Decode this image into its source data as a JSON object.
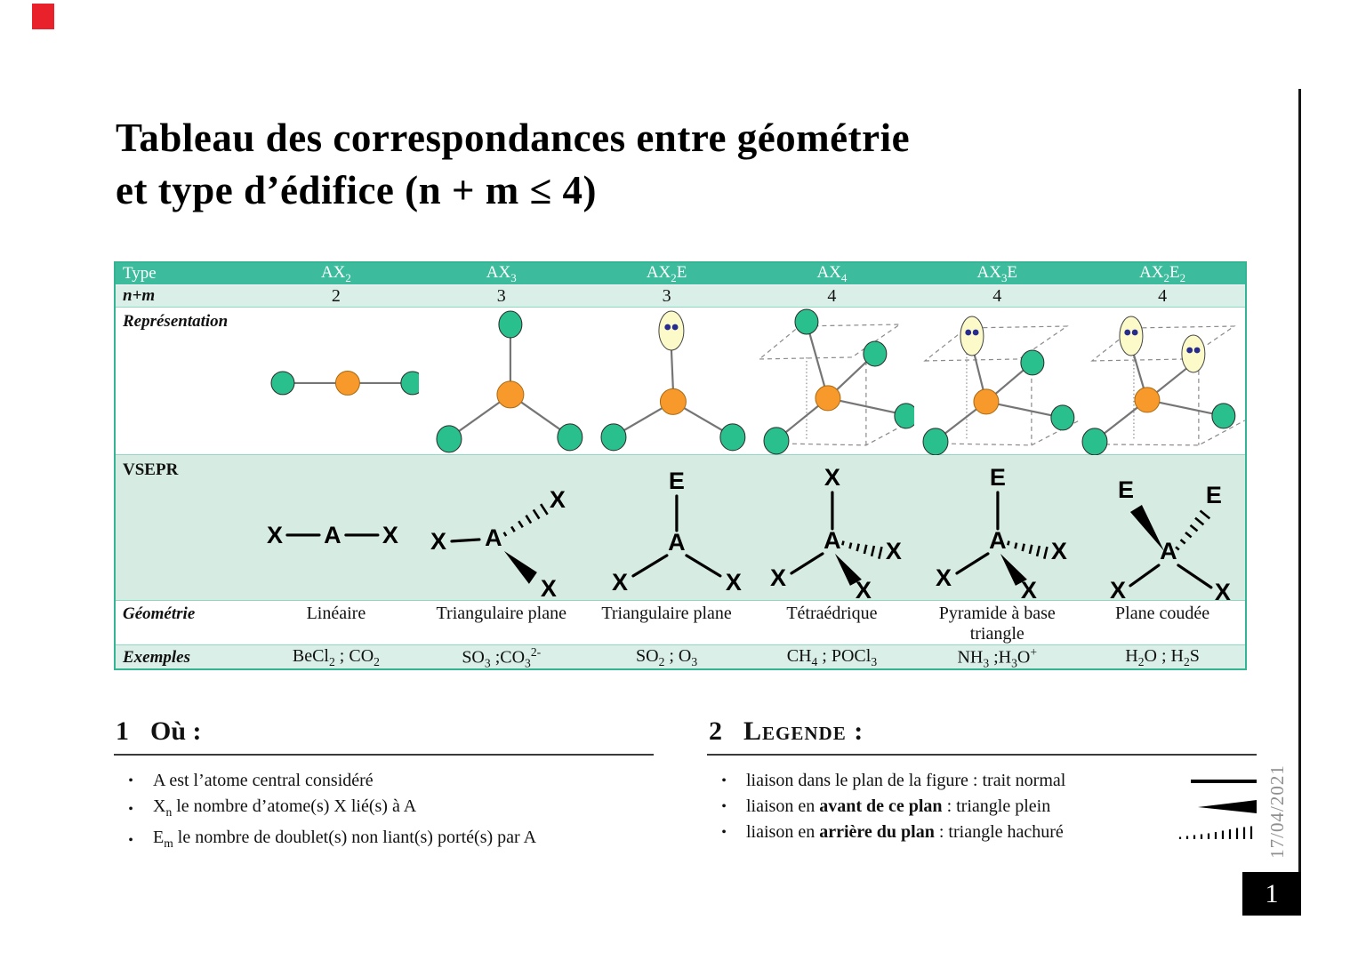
{
  "page": {
    "title_line1": "Tableau des correspondances entre géométrie",
    "title_line2": "et type d’édifice (n + m ≤ 4)",
    "date": "17/04/2021",
    "page_number": "1",
    "marker_color": "#e8212b"
  },
  "colors": {
    "header_teal": "#3cbc9d",
    "row_mint": "#d9efe8",
    "vsepr_mint": "#d6ece2",
    "atom_green": "#29c08d",
    "atom_orange": "#f8992b",
    "lone_pair_lobe": "#fbfac8",
    "lone_pair_dots": "#282b8f"
  },
  "table": {
    "header_label": "Type",
    "row_labels": {
      "nm": "n+m",
      "representation": "Représentation",
      "vsepr": "VSEPR",
      "geometrie": "Géométrie",
      "exemples": "Exemples"
    },
    "columns": [
      {
        "type": "AX~2~",
        "nm": "2",
        "geometrie": "Linéaire",
        "exemples": "BeCl~2~ ; CO~2~"
      },
      {
        "type": "AX~3~",
        "nm": "3",
        "geometrie": "Triangulaire plane",
        "exemples": "SO~3~ ;CO~3~^2-^"
      },
      {
        "type": "AX~2~E",
        "nm": "3",
        "geometrie": "Triangulaire plane",
        "exemples": "SO~2~ ; O~3~"
      },
      {
        "type": "AX~4~",
        "nm": "4",
        "geometrie": "Tétraédrique",
        "exemples": "CH~4~ ; POCl~3~"
      },
      {
        "type": "AX~3~E",
        "nm": "4",
        "geometrie": "Pyramide à base triangle",
        "exemples": "NH~3~ ;H~3~O^+^"
      },
      {
        "type": "AX~2~E~2~",
        "nm": "4",
        "geometrie": "Plane coudée",
        "exemples": "H~2~O ; H~2~S"
      }
    ]
  },
  "vsepr": {
    "letters": {
      "a": "A",
      "x": "X",
      "e": "E"
    }
  },
  "sections": {
    "ou": {
      "number": "1",
      "title": "Où :",
      "bullets": [
        "A est l’atome central considéré",
        "X~n~ le nombre d’atome(s) X lié(s) à A",
        "E~m~ le nombre de doublet(s) non liant(s) porté(s) par A"
      ]
    },
    "legende": {
      "number": "2",
      "title": "Legende :",
      "bullets": [
        {
          "prefix": "liaison dans le plan de la figure : trait normal",
          "bold": "",
          "suffix": "",
          "symbol": "straight-bond"
        },
        {
          "prefix": "liaison en ",
          "bold": "avant de ce plan",
          "suffix": " : triangle plein",
          "symbol": "solid-wedge"
        },
        {
          "prefix": "liaison en ",
          "bold": "arrière du plan",
          "suffix": " : triangle hachuré",
          "symbol": "hashed-wedge"
        }
      ]
    }
  }
}
